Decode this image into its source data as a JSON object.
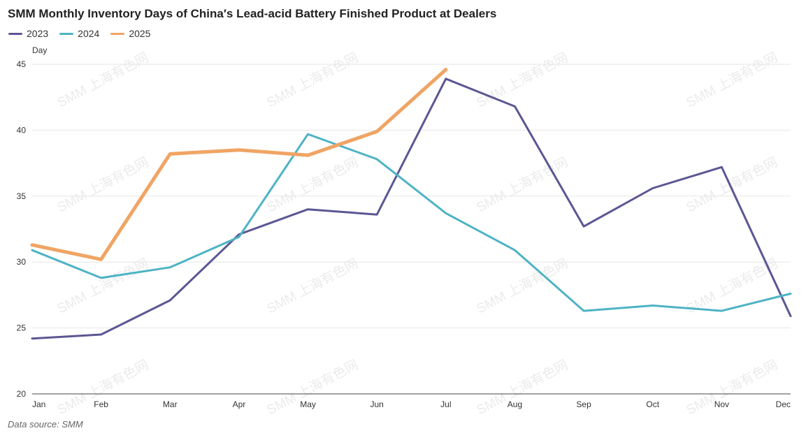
{
  "title": "SMM Monthly Inventory Days of China′s Lead-acid Battery Finished Product at Dealers",
  "source": "Data source:  SMM",
  "watermark": "SMM 上海有色网",
  "colors": {
    "2023": "#5b5793",
    "2024": "#4db3c4",
    "2025": "#f0a464",
    "grid": "#e6e6e6",
    "axis": "#444444"
  },
  "chart_data": {
    "type": "line",
    "ylabel": "Day",
    "ylim": [
      20,
      45
    ],
    "yticks": [
      20,
      25,
      30,
      35,
      40,
      45
    ],
    "grid": true,
    "legend_position": "top-left",
    "categories": [
      "Jan",
      "Feb",
      "Mar",
      "Apr",
      "May",
      "Jun",
      "Jul",
      "Aug",
      "Sep",
      "Oct",
      "Nov",
      "Dec"
    ],
    "series": [
      {
        "name": "2023",
        "values": [
          24.2,
          24.5,
          27.1,
          32.1,
          34.0,
          33.6,
          43.9,
          41.8,
          32.7,
          35.6,
          37.2,
          25.9
        ]
      },
      {
        "name": "2024",
        "values": [
          30.9,
          28.8,
          29.6,
          31.9,
          39.7,
          37.8,
          33.7,
          30.9,
          26.3,
          26.7,
          26.3,
          27.6
        ]
      },
      {
        "name": "2025",
        "values": [
          31.3,
          30.2,
          38.2,
          38.5,
          38.1,
          39.9,
          44.6,
          null,
          null,
          null,
          null,
          null
        ]
      }
    ]
  }
}
